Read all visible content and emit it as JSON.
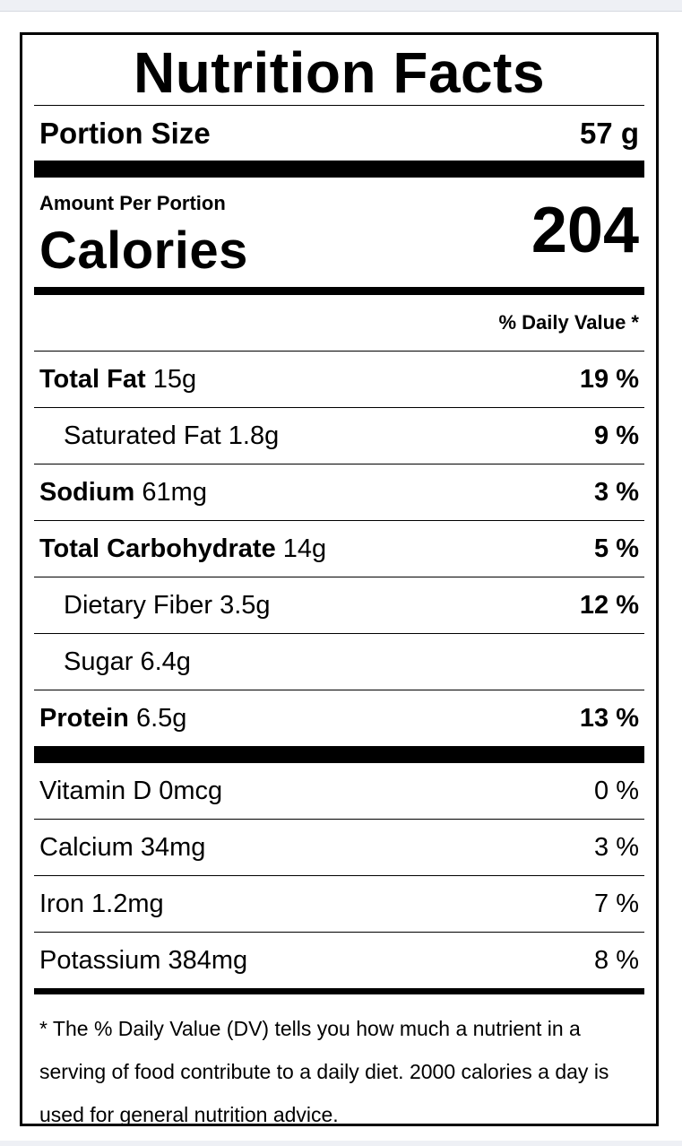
{
  "title": "Nutrition Facts",
  "portion": {
    "label": "Portion Size",
    "value": "57 g"
  },
  "calories": {
    "amount_label": "Amount Per Portion",
    "label": "Calories",
    "value": "204"
  },
  "daily_value_header": "% Daily Value *",
  "nutrients": [
    {
      "name": "Total Fat",
      "amount": "15g",
      "dv": "19 %"
    },
    {
      "name": "Saturated Fat",
      "amount": "1.8g",
      "dv": "9 %"
    },
    {
      "name": "Sodium",
      "amount": "61mg",
      "dv": "3 %"
    },
    {
      "name": "Total Carbohydrate",
      "amount": "14g",
      "dv": "5 %"
    },
    {
      "name": "Dietary Fiber",
      "amount": "3.5g",
      "dv": "12 %"
    },
    {
      "name": "Sugar",
      "amount": "6.4g",
      "dv": ""
    },
    {
      "name": "Protein",
      "amount": "6.5g",
      "dv": "13 %"
    }
  ],
  "vitamins": [
    {
      "name": "Vitamin D",
      "amount": "0mcg",
      "dv": "0 %"
    },
    {
      "name": "Calcium",
      "amount": "34mg",
      "dv": "3 %"
    },
    {
      "name": "Iron",
      "amount": "1.2mg",
      "dv": "7 %"
    },
    {
      "name": "Potassium",
      "amount": "384mg",
      "dv": "8 %"
    }
  ],
  "footnote": "* The % Daily Value (DV) tells you how much a nutrient in a serving of food contribute to a daily diet. 2000 calories a day is used for general nutrition advice."
}
